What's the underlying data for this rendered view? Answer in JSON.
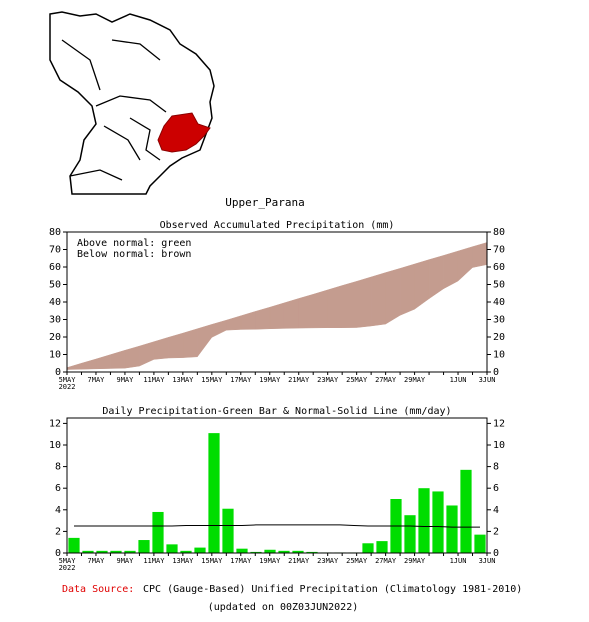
{
  "region": "Upper_Parana",
  "chart_data": [
    {
      "type": "area",
      "title": "Observed Accumulated Precipitation (mm)",
      "notes": [
        "Above normal: green",
        "Below normal: brown"
      ],
      "above_color": "#00cc00",
      "below_color": "#c49c8f",
      "categories": [
        "5MAY",
        null,
        "7MAY",
        null,
        "9MAY",
        null,
        "11MAY",
        null,
        "13MAY",
        null,
        "15MAY",
        null,
        "17MAY",
        null,
        "19MAY",
        null,
        "21MAY",
        null,
        "23MAY",
        null,
        "25MAY",
        null,
        "27MAY",
        null,
        "29MAY",
        null,
        null,
        "1JUN",
        null,
        "3JUN"
      ],
      "year": "2022",
      "series": [
        {
          "values": [
            1.4,
            1.6,
            1.8,
            2.0,
            2.2,
            3.4,
            7.2,
            8.0,
            8.2,
            8.7,
            19.8,
            23.9,
            24.3,
            24.4,
            24.7,
            24.9,
            25.1,
            25.2,
            25.3,
            25.3,
            25.4,
            26.3,
            27.4,
            32.4,
            35.9,
            41.9,
            47.6,
            52.0,
            59.7,
            61.4
          ]
        },
        {
          "values": [
            2.5,
            5.0,
            7.4,
            9.9,
            12.4,
            14.8,
            17.3,
            19.8,
            22.2,
            24.7,
            27.2,
            29.6,
            32.1,
            34.6,
            37.0,
            39.5,
            42.0,
            44.4,
            46.9,
            49.4,
            51.8,
            54.3,
            56.8,
            59.2,
            61.7,
            64.2,
            66.6,
            69.1,
            71.6,
            74.0
          ]
        }
      ],
      "ylim": [
        0,
        80
      ],
      "yticks": [
        0,
        10,
        20,
        30,
        40,
        50,
        60,
        70,
        80
      ]
    },
    {
      "type": "bar",
      "title": "Daily Precipitation-Green Bar & Normal-Solid Line (mm/day)",
      "categories": [
        "5MAY",
        null,
        "7MAY",
        null,
        "9MAY",
        null,
        "11MAY",
        null,
        "13MAY",
        null,
        "15MAY",
        null,
        "17MAY",
        null,
        "19MAY",
        null,
        "21MAY",
        null,
        "23MAY",
        null,
        "25MAY",
        null,
        "27MAY",
        null,
        "29MAY",
        null,
        null,
        "1JUN",
        null,
        "3JUN"
      ],
      "year": "2022",
      "series": [
        {
          "color": "#00dd00",
          "values": [
            1.4,
            0.2,
            0.2,
            0.2,
            0.2,
            1.2,
            3.8,
            0.8,
            0.2,
            0.5,
            11.1,
            4.1,
            0.4,
            0.1,
            0.3,
            0.2,
            0.2,
            0.1,
            0.05,
            0.05,
            0.05,
            0.9,
            1.1,
            5.0,
            3.5,
            6.0,
            5.7,
            4.4,
            7.7,
            1.7
          ]
        },
        {
          "color": "#000000",
          "values": [
            2.5,
            2.5,
            2.5,
            2.5,
            2.5,
            2.5,
            2.5,
            2.5,
            2.55,
            2.55,
            2.55,
            2.55,
            2.55,
            2.6,
            2.6,
            2.6,
            2.6,
            2.6,
            2.6,
            2.6,
            2.55,
            2.5,
            2.5,
            2.5,
            2.5,
            2.45,
            2.45,
            2.4,
            2.4,
            2.4
          ]
        }
      ],
      "ylim": [
        0,
        12.5
      ],
      "yticks": [
        0,
        2,
        4,
        6,
        8,
        10,
        12
      ]
    }
  ],
  "footer": {
    "source_label": "Data Source:",
    "source": "CPC (Gauge-Based) Unified Precipitation (Climatology 1981-2010)",
    "updated": "(updated on 00Z03JUN2022)"
  }
}
